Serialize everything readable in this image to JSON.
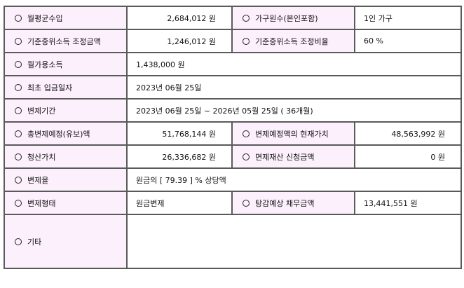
{
  "rows": [
    {
      "label": "월평균수입",
      "value": "2,684,012 원",
      "label2": "가구원수(본인포함)",
      "value2": "1인 가구"
    },
    {
      "label": "기준중위소득 조정금액",
      "value": "1,246,012 원",
      "label2": "기준중위소득 조정비율",
      "value2": "60 %"
    },
    {
      "label": "월가용소득",
      "value": "1,438,000 원"
    },
    {
      "label": "최초 입금일자",
      "value": "2023년 06월 25일"
    },
    {
      "label": "변제기간",
      "value": "2023년 06월 25일 ~ 2026년 05월 25일 ( 36개월)"
    },
    {
      "label": "총변제예정(유보)액",
      "value": "51,768,144 원",
      "label2": "변제예정액의 현재가치",
      "value2": "48,563,992 원"
    },
    {
      "label": "청산가치",
      "value": "26,336,682 원",
      "label2": "면제재산 신청금액",
      "value2": "0 원"
    },
    {
      "label": "변제율",
      "value": "원금의 [ 79.39 ] % 상당액"
    },
    {
      "label": "변제형태",
      "value": "원금변제",
      "label2": "탕감예상 채무금액",
      "value2": "13,441,551 원"
    },
    {
      "label": "기타",
      "value": ""
    }
  ],
  "colors": {
    "label_bg": "#fcf0fc",
    "border": "#5a5a5a"
  },
  "icon": "circle-bullet-icon"
}
